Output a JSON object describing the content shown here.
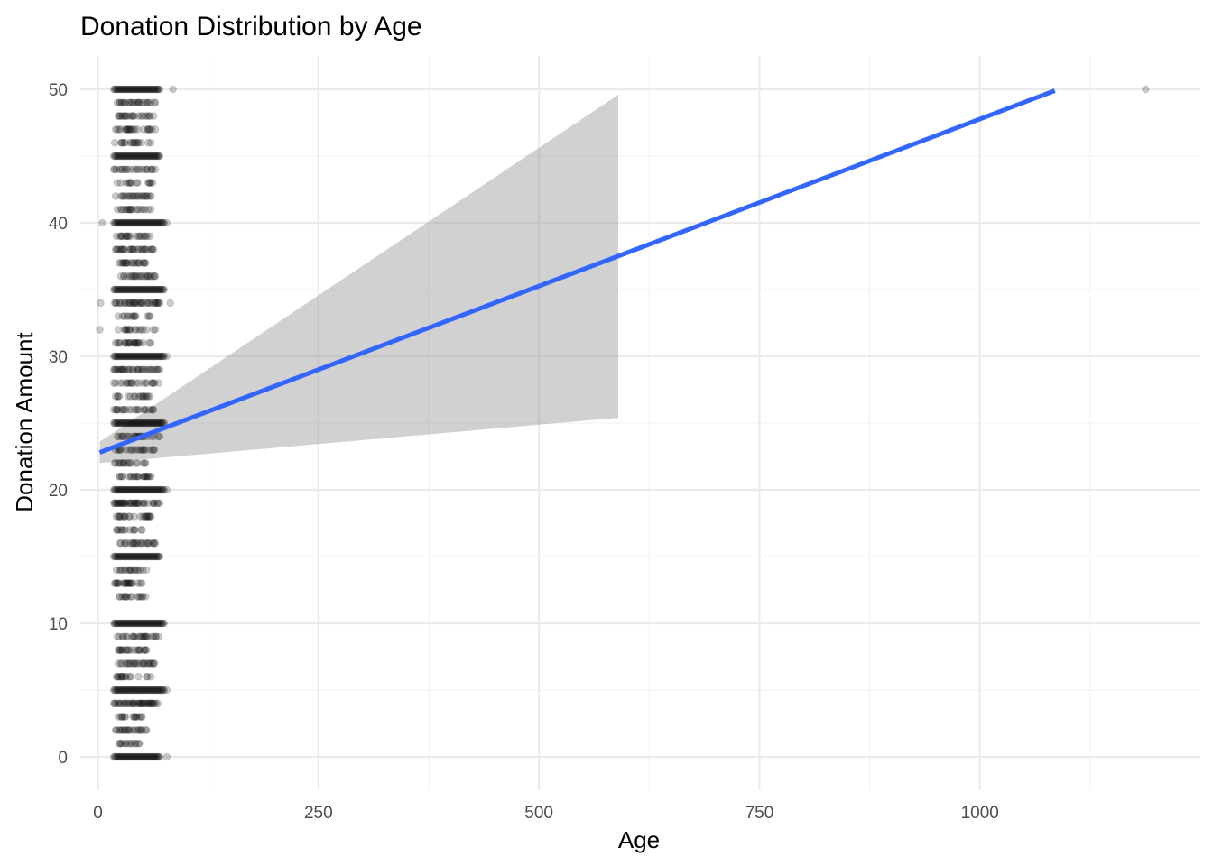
{
  "chart_data": {
    "type": "scatter",
    "title": "Donation Distribution by Age",
    "xlabel": "Age",
    "ylabel": "Donation Amount",
    "xlim": [
      -20,
      1250
    ],
    "ylim": [
      -2.5,
      52.5
    ],
    "x_ticks": [
      0,
      250,
      500,
      750,
      1000
    ],
    "x_tick_labels": [
      "0",
      "250",
      "500",
      "750",
      "1000"
    ],
    "y_ticks": [
      0,
      10,
      20,
      30,
      40,
      50
    ],
    "y_tick_labels": [
      "0",
      "10",
      "20",
      "30",
      "40",
      "50"
    ],
    "grid": true,
    "point_color": "#000000",
    "point_alpha": 0.2,
    "trend_line_color": "#3366ff",
    "ribbon_color": "#999999",
    "points": {
      "bands": [
        {
          "y": 0,
          "x_min": 18,
          "x_max": 70,
          "density": "high"
        },
        {
          "y": 1,
          "x_min": 22,
          "x_max": 48,
          "density": "low"
        },
        {
          "y": 2,
          "x_min": 20,
          "x_max": 55,
          "density": "low"
        },
        {
          "y": 3,
          "x_min": 22,
          "x_max": 50,
          "density": "low"
        },
        {
          "y": 4,
          "x_min": 18,
          "x_max": 70,
          "density": "medium"
        },
        {
          "y": 5,
          "x_min": 18,
          "x_max": 75,
          "density": "high"
        },
        {
          "y": 6,
          "x_min": 20,
          "x_max": 60,
          "density": "low"
        },
        {
          "y": 7,
          "x_min": 20,
          "x_max": 65,
          "density": "low"
        },
        {
          "y": 8,
          "x_min": 20,
          "x_max": 55,
          "density": "low"
        },
        {
          "y": 9,
          "x_min": 18,
          "x_max": 70,
          "density": "low"
        },
        {
          "y": 10,
          "x_min": 18,
          "x_max": 75,
          "density": "high"
        },
        {
          "y": 12,
          "x_min": 22,
          "x_max": 55,
          "density": "low"
        },
        {
          "y": 13,
          "x_min": 18,
          "x_max": 50,
          "density": "low"
        },
        {
          "y": 14,
          "x_min": 20,
          "x_max": 55,
          "density": "low"
        },
        {
          "y": 15,
          "x_min": 18,
          "x_max": 70,
          "density": "high"
        },
        {
          "y": 16,
          "x_min": 25,
          "x_max": 65,
          "density": "low"
        },
        {
          "y": 17,
          "x_min": 20,
          "x_max": 50,
          "density": "low"
        },
        {
          "y": 18,
          "x_min": 20,
          "x_max": 60,
          "density": "low"
        },
        {
          "y": 19,
          "x_min": 18,
          "x_max": 70,
          "density": "medium"
        },
        {
          "y": 20,
          "x_min": 18,
          "x_max": 75,
          "density": "high"
        },
        {
          "y": 21,
          "x_min": 22,
          "x_max": 60,
          "density": "low"
        },
        {
          "y": 22,
          "x_min": 18,
          "x_max": 55,
          "density": "low"
        },
        {
          "y": 23,
          "x_min": 20,
          "x_max": 65,
          "density": "low"
        },
        {
          "y": 24,
          "x_min": 22,
          "x_max": 70,
          "density": "low"
        },
        {
          "y": 25,
          "x_min": 18,
          "x_max": 75,
          "density": "high"
        },
        {
          "y": 26,
          "x_min": 18,
          "x_max": 65,
          "density": "low"
        },
        {
          "y": 27,
          "x_min": 20,
          "x_max": 60,
          "density": "low"
        },
        {
          "y": 28,
          "x_min": 18,
          "x_max": 70,
          "density": "low"
        },
        {
          "y": 29,
          "x_min": 18,
          "x_max": 70,
          "density": "medium"
        },
        {
          "y": 30,
          "x_min": 18,
          "x_max": 75,
          "density": "high"
        },
        {
          "y": 31,
          "x_min": 20,
          "x_max": 60,
          "density": "low"
        },
        {
          "y": 32,
          "x_min": 20,
          "x_max": 65,
          "density": "low"
        },
        {
          "y": 33,
          "x_min": 20,
          "x_max": 60,
          "density": "low"
        },
        {
          "y": 34,
          "x_min": 18,
          "x_max": 70,
          "density": "low"
        },
        {
          "y": 35,
          "x_min": 18,
          "x_max": 75,
          "density": "high"
        },
        {
          "y": 36,
          "x_min": 20,
          "x_max": 65,
          "density": "low"
        },
        {
          "y": 37,
          "x_min": 20,
          "x_max": 55,
          "density": "low"
        },
        {
          "y": 38,
          "x_min": 20,
          "x_max": 65,
          "density": "low"
        },
        {
          "y": 39,
          "x_min": 20,
          "x_max": 60,
          "density": "low"
        },
        {
          "y": 40,
          "x_min": 18,
          "x_max": 75,
          "density": "high"
        },
        {
          "y": 41,
          "x_min": 22,
          "x_max": 60,
          "density": "low"
        },
        {
          "y": 42,
          "x_min": 20,
          "x_max": 60,
          "density": "low"
        },
        {
          "y": 43,
          "x_min": 22,
          "x_max": 65,
          "density": "low"
        },
        {
          "y": 44,
          "x_min": 18,
          "x_max": 65,
          "density": "low"
        },
        {
          "y": 45,
          "x_min": 18,
          "x_max": 70,
          "density": "high"
        },
        {
          "y": 46,
          "x_min": 18,
          "x_max": 60,
          "density": "low"
        },
        {
          "y": 47,
          "x_min": 20,
          "x_max": 65,
          "density": "low"
        },
        {
          "y": 48,
          "x_min": 20,
          "x_max": 65,
          "density": "low"
        },
        {
          "y": 49,
          "x_min": 18,
          "x_max": 65,
          "density": "low"
        },
        {
          "y": 50,
          "x_min": 18,
          "x_max": 70,
          "density": "high"
        }
      ],
      "outliers": [
        {
          "x": 2,
          "y": 32
        },
        {
          "x": 3,
          "y": 34
        },
        {
          "x": 5,
          "y": 40
        },
        {
          "x": 85,
          "y": 50
        },
        {
          "x": 82,
          "y": 34
        },
        {
          "x": 78,
          "y": 30
        },
        {
          "x": 78,
          "y": 40
        },
        {
          "x": 78,
          "y": 20
        },
        {
          "x": 78,
          "y": 5
        },
        {
          "x": 78,
          "y": 0
        },
        {
          "x": 1188,
          "y": 50
        }
      ]
    },
    "trend_line": {
      "x": [
        2,
        1085
      ],
      "y": [
        22.8,
        49.9
      ]
    },
    "confidence_band": {
      "x": [
        2,
        590
      ],
      "lower": [
        22.0,
        25.4
      ],
      "upper": [
        23.6,
        49.6
      ]
    }
  }
}
